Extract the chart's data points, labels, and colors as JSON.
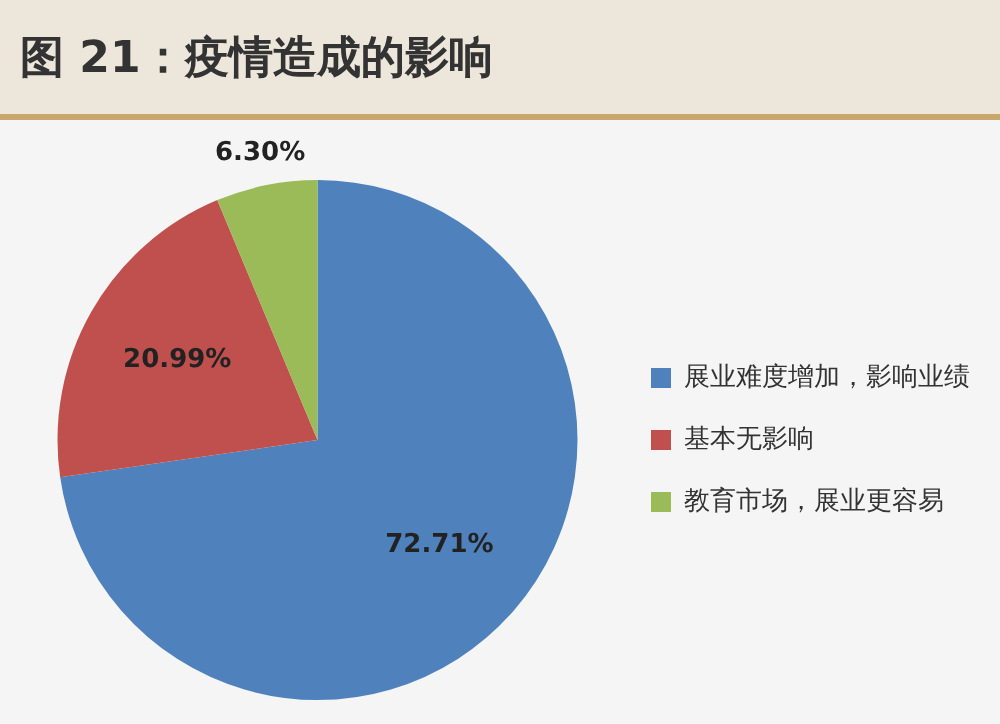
{
  "chart_data": {
    "type": "pie",
    "title": "图 21：疫情造成的影响",
    "categories": [
      "展业难度增加，影响业绩",
      "基本无影响",
      "教育市场，展业更容易"
    ],
    "values": [
      72.71,
      20.99,
      6.3
    ],
    "colors": [
      "#4f81bd",
      "#c0504d",
      "#9bbb59"
    ],
    "value_labels": [
      "72.71%",
      "20.99%",
      "6.30%"
    ],
    "legend": "right"
  }
}
